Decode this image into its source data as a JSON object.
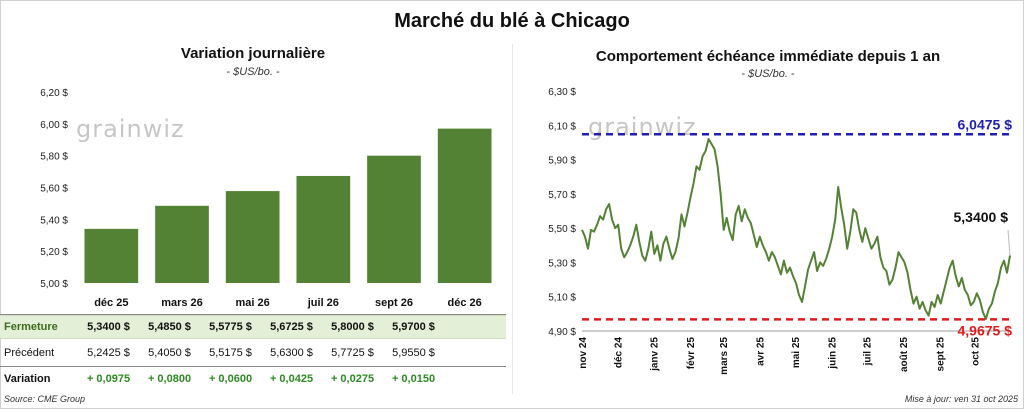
{
  "main_title": "Marché du blé à Chicago",
  "left_panel": {
    "title": "Variation journalière",
    "subtitle": "- $US/bo. -",
    "logo": "grainwiz"
  },
  "right_panel": {
    "title": "Comportement échéance immédiate depuis 1 an",
    "subtitle": "- $US/bo. -",
    "logo": "grainwiz"
  },
  "table": {
    "close_label": "Fermeture",
    "prev_label": "Précédent",
    "var_label": "Variation",
    "close": [
      "5,3400 $",
      "5,4850 $",
      "5,5775 $",
      "5,6725 $",
      "5,8000 $",
      "5,9700 $"
    ],
    "prev": [
      "5,2425 $",
      "5,4050 $",
      "5,5175 $",
      "5,6300 $",
      "5,7725 $",
      "5,9550 $"
    ],
    "var": [
      "+ 0,0975",
      "+ 0,0800",
      "+ 0,0600",
      "+ 0,0425",
      "+ 0,0275",
      "+ 0,0150"
    ]
  },
  "footer": {
    "source": "Source: CME Group",
    "updated": "Mise à jour: ven 31 oct 2025"
  },
  "colors": {
    "bar": "#548235",
    "line": "#548235",
    "high_line": "#1f1fb4",
    "low_line": "#e01b1b"
  },
  "chart_data": [
    {
      "type": "bar",
      "categories": [
        "déc 25",
        "mars 26",
        "mai 26",
        "juil 26",
        "sept 26",
        "déc 26"
      ],
      "values": [
        5.34,
        5.485,
        5.5775,
        5.6725,
        5.8,
        5.97
      ],
      "ylim": [
        5.0,
        6.2
      ],
      "yticks": [
        "5,00 $",
        "5,20 $",
        "5,40 $",
        "5,60 $",
        "5,80 $",
        "6,00 $",
        "6,20 $"
      ],
      "grid": false
    },
    {
      "type": "line",
      "ylim": [
        4.9,
        6.3
      ],
      "yticks": [
        "4,90 $",
        "5,10 $",
        "5,30 $",
        "5,50 $",
        "5,70 $",
        "5,90 $",
        "6,10 $",
        "6,30 $"
      ],
      "xticks": [
        "nov 24",
        "déc 24",
        "janv 25",
        "févr 25",
        "mars 25",
        "avr 25",
        "mai 25",
        "juin 25",
        "juil 25",
        "août 25",
        "sept 25",
        "oct 25"
      ],
      "x_start": "2024-11-01",
      "x_end": "2025-10-31",
      "series": [
        {
          "values": [
            5.49,
            5.45,
            5.38,
            5.49,
            5.48,
            5.52,
            5.57,
            5.55,
            5.61,
            5.64,
            5.55,
            5.5,
            5.52,
            5.38,
            5.33,
            5.36,
            5.4,
            5.45,
            5.52,
            5.42,
            5.34,
            5.31,
            5.38,
            5.48,
            5.35,
            5.4,
            5.31,
            5.41,
            5.45,
            5.38,
            5.32,
            5.36,
            5.44,
            5.58,
            5.51,
            5.59,
            5.68,
            5.76,
            5.86,
            5.84,
            5.92,
            5.95,
            6.02,
            5.99,
            5.96,
            5.86,
            5.7,
            5.49,
            5.56,
            5.48,
            5.43,
            5.58,
            5.63,
            5.54,
            5.61,
            5.56,
            5.53,
            5.46,
            5.39,
            5.45,
            5.4,
            5.36,
            5.31,
            5.36,
            5.33,
            5.28,
            5.23,
            5.31,
            5.24,
            5.27,
            5.22,
            5.18,
            5.11,
            5.07,
            5.16,
            5.26,
            5.31,
            5.36,
            5.25,
            5.3,
            5.28,
            5.32,
            5.38,
            5.45,
            5.55,
            5.74,
            5.62,
            5.52,
            5.38,
            5.48,
            5.61,
            5.59,
            5.49,
            5.42,
            5.5,
            5.44,
            5.38,
            5.41,
            5.45,
            5.33,
            5.27,
            5.25,
            5.17,
            5.2,
            5.27,
            5.36,
            5.33,
            5.3,
            5.24,
            5.14,
            5.06,
            5.1,
            5.03,
            5.07,
            5.02,
            4.99,
            5.07,
            5.04,
            5.11,
            5.06,
            5.13,
            5.2,
            5.27,
            5.31,
            5.22,
            5.16,
            5.21,
            5.14,
            5.11,
            5.05,
            5.07,
            5.12,
            5.08,
            5.01,
            4.97,
            5.03,
            5.06,
            5.13,
            5.18,
            5.27,
            5.31,
            5.24,
            5.34
          ]
        }
      ],
      "hlines": [
        {
          "value": 6.0475,
          "label": "6,0475 $"
        },
        {
          "value": 4.9675,
          "label": "4,9675 $"
        }
      ],
      "last_label": "5,3400 $"
    }
  ]
}
